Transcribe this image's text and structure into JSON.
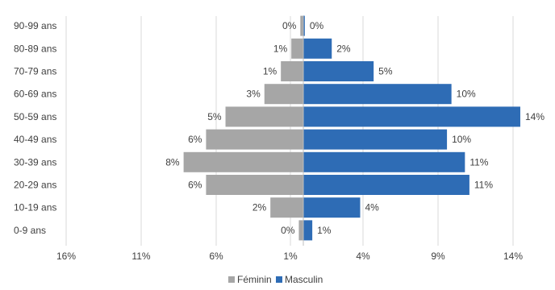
{
  "chart_data": {
    "type": "bar",
    "orientation": "horizontal",
    "layout": "population-pyramid",
    "categories": [
      "90-99 ans",
      "80-89 ans",
      "70-79 ans",
      "60-69 ans",
      "50-59 ans",
      "40-49 ans",
      "30-39 ans",
      "20-29 ans",
      "10-19 ans",
      "0-9 ans"
    ],
    "series": [
      {
        "name": "Féminin",
        "color": "#a6a6a6",
        "values": [
          0.2,
          0.8,
          1.5,
          2.6,
          5.2,
          6.5,
          8.0,
          6.5,
          2.2,
          0.3
        ],
        "labels": [
          "0%",
          "1%",
          "1%",
          "3%",
          "5%",
          "6%",
          "8%",
          "6%",
          "2%",
          "0%"
        ]
      },
      {
        "name": "Masculin",
        "color": "#2e6cb5",
        "values": [
          0.1,
          1.9,
          4.7,
          9.9,
          14.5,
          9.6,
          10.8,
          11.1,
          3.8,
          0.6
        ],
        "labels": [
          "0%",
          "2%",
          "5%",
          "10%",
          "14%",
          "10%",
          "11%",
          "11%",
          "4%",
          "1%"
        ]
      }
    ],
    "x_ticks": [
      "16%",
      "11%",
      "6%",
      "1%",
      "4%",
      "9%",
      "14%"
    ],
    "grid": true,
    "legend_position": "bottom"
  }
}
